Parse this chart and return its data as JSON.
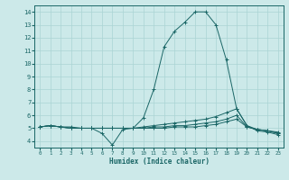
{
  "xlabel": "Humidex (Indice chaleur)",
  "xlim": [
    -0.5,
    23.5
  ],
  "ylim": [
    3.5,
    14.5
  ],
  "yticks": [
    4,
    5,
    6,
    7,
    8,
    9,
    10,
    11,
    12,
    13,
    14
  ],
  "xticks": [
    0,
    1,
    2,
    3,
    4,
    5,
    6,
    7,
    8,
    9,
    10,
    11,
    12,
    13,
    14,
    15,
    16,
    17,
    18,
    19,
    20,
    21,
    22,
    23
  ],
  "bg_color": "#cce9e9",
  "grid_color": "#aad4d4",
  "line_color": "#1a6666",
  "curves": [
    {
      "x": [
        0,
        1,
        2,
        3,
        4,
        5,
        6,
        7,
        8,
        9,
        10,
        11,
        12,
        13,
        14,
        15,
        16,
        17,
        18,
        19,
        20,
        21,
        22,
        23
      ],
      "y": [
        5.1,
        5.2,
        5.1,
        5.1,
        5.0,
        5.0,
        4.6,
        3.7,
        4.9,
        5.0,
        5.8,
        8.0,
        11.3,
        12.5,
        13.2,
        14.0,
        14.0,
        13.0,
        10.3,
        6.5,
        5.2,
        4.8,
        4.7,
        4.5
      ]
    },
    {
      "x": [
        0,
        1,
        2,
        3,
        4,
        5,
        6,
        7,
        8,
        9,
        10,
        11,
        12,
        13,
        14,
        15,
        16,
        17,
        18,
        19,
        20,
        21,
        22,
        23
      ],
      "y": [
        5.1,
        5.2,
        5.1,
        5.0,
        5.0,
        5.0,
        5.0,
        5.0,
        5.0,
        5.0,
        5.1,
        5.2,
        5.3,
        5.4,
        5.5,
        5.6,
        5.7,
        5.9,
        6.2,
        6.5,
        5.2,
        4.9,
        4.8,
        4.7
      ]
    },
    {
      "x": [
        0,
        1,
        2,
        3,
        4,
        5,
        6,
        7,
        8,
        9,
        10,
        11,
        12,
        13,
        14,
        15,
        16,
        17,
        18,
        19,
        20,
        21,
        22,
        23
      ],
      "y": [
        5.1,
        5.2,
        5.1,
        5.0,
        5.0,
        5.0,
        5.0,
        5.0,
        5.0,
        5.0,
        5.0,
        5.1,
        5.1,
        5.2,
        5.2,
        5.3,
        5.4,
        5.5,
        5.7,
        6.0,
        5.1,
        4.9,
        4.8,
        4.6
      ]
    },
    {
      "x": [
        0,
        1,
        2,
        3,
        4,
        5,
        6,
        7,
        8,
        9,
        10,
        11,
        12,
        13,
        14,
        15,
        16,
        17,
        18,
        19,
        20,
        21,
        22,
        23
      ],
      "y": [
        5.1,
        5.2,
        5.1,
        5.0,
        5.0,
        5.0,
        5.0,
        5.0,
        5.0,
        5.0,
        5.0,
        5.0,
        5.0,
        5.1,
        5.1,
        5.1,
        5.2,
        5.3,
        5.5,
        5.7,
        5.1,
        4.9,
        4.8,
        4.6
      ]
    }
  ]
}
